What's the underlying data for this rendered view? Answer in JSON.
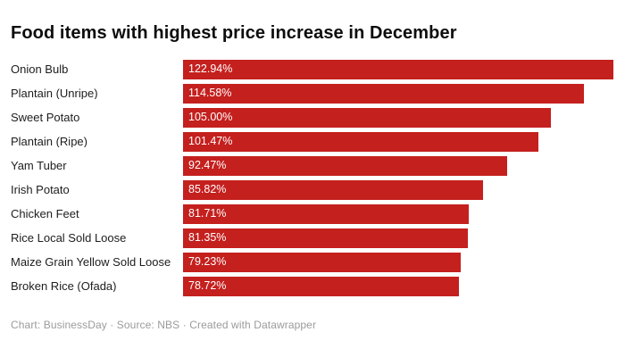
{
  "title": "Food items with highest price increase in December",
  "footer": {
    "text": "Chart: BusinessDay · Source: NBS · Created with Datawrapper"
  },
  "chart_data": {
    "type": "bar",
    "orientation": "horizontal",
    "title": "Food items with highest price increase in December",
    "xlabel": "",
    "ylabel": "",
    "categories": [
      "Onion Bulb",
      "Plantain (Unripe)",
      "Sweet Potato",
      "Plantain (Ripe)",
      "Yam Tuber",
      "Irish Potato",
      "Chicken Feet",
      "Rice Local Sold Loose",
      "Maize Grain Yellow Sold Loose",
      "Broken Rice (Ofada)"
    ],
    "values": [
      122.94,
      114.58,
      105.0,
      101.47,
      92.47,
      85.82,
      81.71,
      81.35,
      79.23,
      78.72
    ],
    "value_labels": [
      "122.94%",
      "114.58%",
      "105.00%",
      "101.47%",
      "92.47%",
      "85.82%",
      "81.71%",
      "81.35%",
      "79.23%",
      "78.72%"
    ],
    "xlim": [
      0,
      122.94
    ],
    "grid": false,
    "legend": false,
    "bar_color": "#c4201e",
    "value_label_color": "#ffffff",
    "value_label_position": "inside-left"
  }
}
